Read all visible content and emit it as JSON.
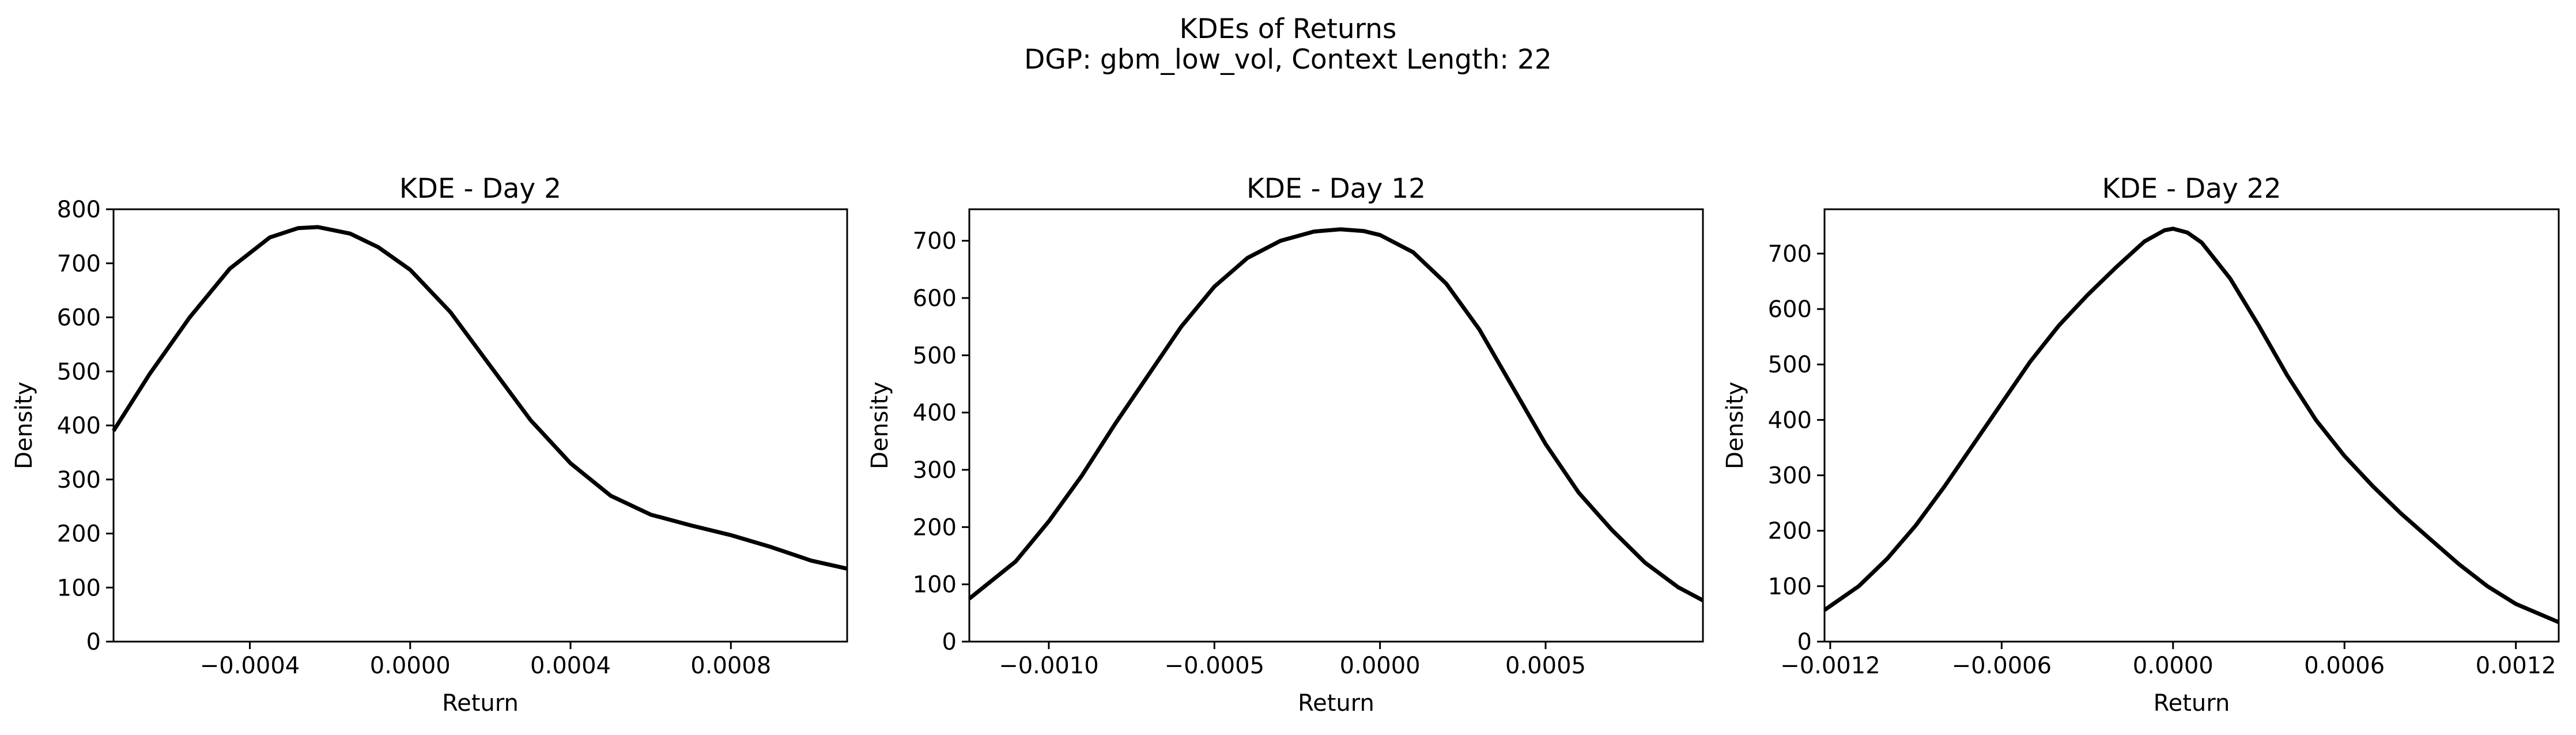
{
  "suptitle": {
    "line1": "KDEs of Returns",
    "line2": "DGP: gbm_low_vol, Context Length: 22"
  },
  "chart_data": [
    {
      "type": "line",
      "title": "KDE - Day 2",
      "xlabel": "Return",
      "ylabel": "Density",
      "xlim": [
        -0.00074,
        0.00109
      ],
      "ylim": [
        0,
        800
      ],
      "xticks": [
        -0.0004,
        0.0,
        0.0004,
        0.0008
      ],
      "xtick_labels": [
        "−0.0004",
        "0.0000",
        "0.0004",
        "0.0008"
      ],
      "yticks": [
        0,
        100,
        200,
        300,
        400,
        500,
        600,
        700,
        800
      ],
      "ytick_labels": [
        "0",
        "100",
        "200",
        "300",
        "400",
        "500",
        "600",
        "700",
        "800"
      ],
      "grid": false,
      "series": [
        {
          "color": "#000000",
          "x": [
            -0.00074,
            -0.00065,
            -0.00055,
            -0.00045,
            -0.00035,
            -0.00028,
            -0.00023,
            -0.00015,
            -8e-05,
            0.0,
            0.0001,
            0.0002,
            0.0003,
            0.0004,
            0.0005,
            0.0006,
            0.0007,
            0.0008,
            0.0009,
            0.001,
            0.00109
          ],
          "y": [
            390,
            495,
            600,
            690,
            748,
            765,
            767,
            755,
            730,
            688,
            610,
            510,
            410,
            330,
            270,
            235,
            215,
            197,
            175,
            150,
            135
          ]
        }
      ]
    },
    {
      "type": "line",
      "title": "KDE - Day 12",
      "xlabel": "Return",
      "ylabel": "Density",
      "xlim": [
        -0.00124,
        0.000975
      ],
      "ylim": [
        0,
        755
      ],
      "xticks": [
        -0.001,
        -0.0005,
        0.0,
        0.0005
      ],
      "xtick_labels": [
        "−0.0010",
        "−0.0005",
        "0.0000",
        "0.0005"
      ],
      "yticks": [
        0,
        100,
        200,
        300,
        400,
        500,
        600,
        700
      ],
      "ytick_labels": [
        "0",
        "100",
        "200",
        "300",
        "400",
        "500",
        "600",
        "700"
      ],
      "grid": false,
      "series": [
        {
          "color": "#000000",
          "x": [
            -0.00124,
            -0.0011,
            -0.001,
            -0.0009,
            -0.0008,
            -0.0007,
            -0.0006,
            -0.0005,
            -0.0004,
            -0.0003,
            -0.0002,
            -0.00012,
            -5e-05,
            0.0,
            0.0001,
            0.0002,
            0.0003,
            0.0004,
            0.0005,
            0.0006,
            0.0007,
            0.0008,
            0.0009,
            0.000975
          ],
          "y": [
            75,
            140,
            210,
            290,
            380,
            465,
            550,
            620,
            670,
            700,
            716,
            720,
            717,
            710,
            680,
            625,
            545,
            445,
            345,
            260,
            195,
            138,
            95,
            72
          ]
        }
      ]
    },
    {
      "type": "line",
      "title": "KDE - Day 22",
      "xlabel": "Return",
      "ylabel": "Density",
      "xlim": [
        -0.00122,
        0.00135
      ],
      "ylim": [
        0,
        780
      ],
      "xticks": [
        -0.0012,
        -0.0006,
        0.0,
        0.0006,
        0.0012
      ],
      "xtick_labels": [
        "−0.0012",
        "−0.0006",
        "0.0000",
        "0.0006",
        "0.0012"
      ],
      "yticks": [
        0,
        100,
        200,
        300,
        400,
        500,
        600,
        700
      ],
      "ytick_labels": [
        "0",
        "100",
        "200",
        "300",
        "400",
        "500",
        "600",
        "700"
      ],
      "grid": false,
      "series": [
        {
          "color": "#000000",
          "x": [
            -0.00122,
            -0.0011,
            -0.001,
            -0.0009,
            -0.0008,
            -0.0007,
            -0.0006,
            -0.0005,
            -0.0004,
            -0.0003,
            -0.0002,
            -0.0001,
            -3e-05,
            0.0,
            5e-05,
            0.0001,
            0.0002,
            0.0003,
            0.0004,
            0.0005,
            0.0006,
            0.0007,
            0.0008,
            0.0009,
            0.001,
            0.0011,
            0.0012,
            0.00135
          ],
          "y": [
            57,
            100,
            150,
            210,
            280,
            355,
            430,
            505,
            570,
            625,
            675,
            722,
            742,
            745,
            738,
            720,
            655,
            570,
            480,
            400,
            335,
            280,
            230,
            185,
            140,
            100,
            68,
            35
          ]
        }
      ]
    }
  ]
}
